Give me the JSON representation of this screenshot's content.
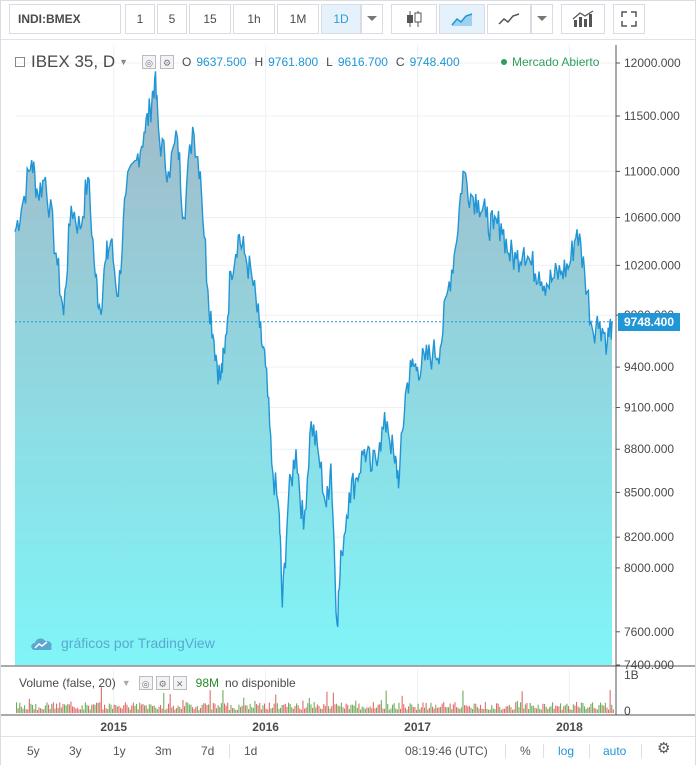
{
  "toolbar": {
    "symbol": "INDI:BMEX",
    "intervals": [
      "1",
      "5",
      "15",
      "1h",
      "1M",
      "1D"
    ],
    "active_interval": "1D"
  },
  "legend": {
    "title": "IBEX 35, D",
    "open_label": "O",
    "open": "9637.500",
    "high_label": "H",
    "high": "9761.800",
    "low_label": "L",
    "low": "9616.700",
    "close_label": "C",
    "close": "9748.400"
  },
  "status": "Mercado Abierto",
  "watermark": "gráficos por TradingView",
  "last_price": "9748.400",
  "volume": {
    "label": "Volume (false, 20)",
    "value": "98M",
    "unavailable": "no disponible",
    "axis_labels": [
      "1B",
      "0"
    ]
  },
  "bottom_bar": {
    "ranges": [
      "5y",
      "3y",
      "1y",
      "3m",
      "7d",
      "1d"
    ],
    "time": "08:19:46 (UTC)",
    "percent": "%",
    "log": "log",
    "auto": "auto"
  },
  "colors": {
    "line": "#2196d6",
    "area_top": "#a3b8c7",
    "area_bottom": "#7ff5f8",
    "vol_up": "#6fae5d",
    "vol_down": "#e36a6a",
    "status": "#2f9d5e"
  },
  "chart_data": {
    "type": "area",
    "scale": "log",
    "y_ticks": [
      7400,
      7600,
      8000,
      8200,
      8500,
      8800,
      9100,
      9400,
      9800,
      10200,
      10600,
      11000,
      11500,
      12000
    ],
    "y_tick_labels": [
      "7400.000",
      "7600.000",
      "8000.000",
      "8200.000",
      "8500.000",
      "8800.000",
      "9100.000",
      "9400.000",
      "9800.000",
      "10200.000",
      "10600.000",
      "11000.000",
      "11500.000",
      "12000.000"
    ],
    "x_ticks": [
      {
        "label": "2015",
        "x": 2015.0
      },
      {
        "label": "2016",
        "x": 2016.0
      },
      {
        "label": "2017",
        "x": 2017.0
      },
      {
        "label": "2018",
        "x": 2018.0
      }
    ],
    "x_range": [
      2014.35,
      2018.3
    ],
    "y_range": [
      7400,
      12000
    ],
    "current_value": 9748.4,
    "series": [
      {
        "values": [
          [
            2014.35,
            10480
          ],
          [
            2014.4,
            10720
          ],
          [
            2014.46,
            11100
          ],
          [
            2014.5,
            10800
          ],
          [
            2014.55,
            10950
          ],
          [
            2014.62,
            10300
          ],
          [
            2014.67,
            9800
          ],
          [
            2014.72,
            10700
          ],
          [
            2014.78,
            10500
          ],
          [
            2014.83,
            10950
          ],
          [
            2014.88,
            10100
          ],
          [
            2014.91,
            9850
          ],
          [
            2014.95,
            10250
          ],
          [
            2014.98,
            10400
          ],
          [
            2015.03,
            9950
          ],
          [
            2015.08,
            10800
          ],
          [
            2015.15,
            11100
          ],
          [
            2015.2,
            11350
          ],
          [
            2015.24,
            11550
          ],
          [
            2015.27,
            11850
          ],
          [
            2015.3,
            11300
          ],
          [
            2015.36,
            11000
          ],
          [
            2015.42,
            11300
          ],
          [
            2015.46,
            10600
          ],
          [
            2015.52,
            11400
          ],
          [
            2015.57,
            11000
          ],
          [
            2015.62,
            10000
          ],
          [
            2015.66,
            9600
          ],
          [
            2015.7,
            9300
          ],
          [
            2015.73,
            9500
          ],
          [
            2015.77,
            10150
          ],
          [
            2015.82,
            10450
          ],
          [
            2015.86,
            10300
          ],
          [
            2015.91,
            10100
          ],
          [
            2015.96,
            9700
          ],
          [
            2016.0,
            9400
          ],
          [
            2016.04,
            8700
          ],
          [
            2016.09,
            8350
          ],
          [
            2016.11,
            7750
          ],
          [
            2016.15,
            8450
          ],
          [
            2016.2,
            8800
          ],
          [
            2016.25,
            8250
          ],
          [
            2016.3,
            9000
          ],
          [
            2016.35,
            8750
          ],
          [
            2016.4,
            8400
          ],
          [
            2016.43,
            8700
          ],
          [
            2016.47,
            7650
          ],
          [
            2016.5,
            8100
          ],
          [
            2016.55,
            8500
          ],
          [
            2016.6,
            8600
          ],
          [
            2016.65,
            8800
          ],
          [
            2016.7,
            8650
          ],
          [
            2016.75,
            8850
          ],
          [
            2016.8,
            9000
          ],
          [
            2016.85,
            8700
          ],
          [
            2016.88,
            8600
          ],
          [
            2016.92,
            9200
          ],
          [
            2016.96,
            9400
          ],
          [
            2017.0,
            9400
          ],
          [
            2017.05,
            9450
          ],
          [
            2017.1,
            9500
          ],
          [
            2017.15,
            9550
          ],
          [
            2017.2,
            10000
          ],
          [
            2017.25,
            10350
          ],
          [
            2017.3,
            11000
          ],
          [
            2017.35,
            10800
          ],
          [
            2017.4,
            10750
          ],
          [
            2017.45,
            10600
          ],
          [
            2017.5,
            10500
          ],
          [
            2017.55,
            10550
          ],
          [
            2017.6,
            10300
          ],
          [
            2017.65,
            10250
          ],
          [
            2017.7,
            10350
          ],
          [
            2017.75,
            10200
          ],
          [
            2017.8,
            10150
          ],
          [
            2017.85,
            10050
          ],
          [
            2017.9,
            10100
          ],
          [
            2017.95,
            10150
          ],
          [
            2018.0,
            10200
          ],
          [
            2018.05,
            10500
          ],
          [
            2018.1,
            10150
          ],
          [
            2018.15,
            9700
          ],
          [
            2018.2,
            9750
          ],
          [
            2018.25,
            9600
          ],
          [
            2018.28,
            9748.4
          ]
        ]
      }
    ]
  }
}
